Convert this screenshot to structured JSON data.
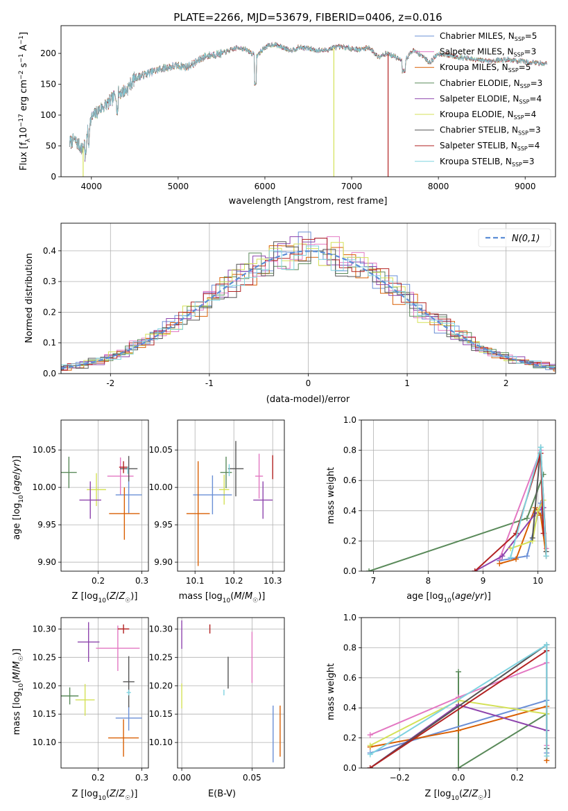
{
  "chart_data": [
    {
      "id": "spectrum",
      "type": "line",
      "title": "PLATE=2266, MJD=53679, FIBERID=0406, z=0.016",
      "xlabel": "wavelength [Angstrom, rest frame]",
      "ylabel": "Flux [f_λ10^-17 erg cm^-2 s^-1 A^-1]",
      "xlim": [
        3650,
        9350
      ],
      "ylim": [
        0,
        245
      ],
      "xticks": [
        4000,
        5000,
        6000,
        7000,
        8000,
        9000
      ],
      "yticks": [
        0,
        50,
        100,
        150,
        200
      ],
      "legend_placement": "right",
      "spectrum_profile_x": [
        3750,
        3800,
        3900,
        3950,
        4000,
        4100,
        4200,
        4300,
        4400,
        4500,
        4600,
        4700,
        4800,
        4900,
        5000,
        5100,
        5200,
        5300,
        5400,
        5500,
        5600,
        5700,
        5800,
        5900,
        6000,
        6100,
        6200,
        6300,
        6400,
        6500,
        6600,
        6700,
        6800,
        6900,
        7000,
        7100,
        7200,
        7300,
        7400,
        7500,
        7600,
        7700,
        7800,
        7900,
        8000,
        8200,
        8400,
        8600,
        8800,
        9000,
        9200
      ],
      "spectrum_profile_y": [
        55,
        60,
        45,
        70,
        95,
        110,
        120,
        135,
        140,
        160,
        165,
        170,
        175,
        178,
        180,
        178,
        185,
        195,
        198,
        200,
        205,
        210,
        205,
        195,
        210,
        215,
        210,
        205,
        210,
        208,
        205,
        205,
        210,
        210,
        208,
        206,
        210,
        195,
        200,
        195,
        185,
        205,
        198,
        185,
        200,
        195,
        190,
        188,
        190,
        186,
        184
      ],
      "series": [
        {
          "name": "Chabrier MILES, N_SSP=5",
          "label_main": "Chabrier MILES, N",
          "label_sub": "SSP",
          "label_tail": "=5",
          "color": "#6a8fd6"
        },
        {
          "name": "Salpeter MILES, N_SSP=3",
          "label_main": "Salpeter MILES, N",
          "label_sub": "SSP",
          "label_tail": "=3",
          "color": "#e377c2"
        },
        {
          "name": "Kroupa MILES, N_SSP=5",
          "label_main": "Kroupa MILES, N",
          "label_sub": "SSP",
          "label_tail": "=5",
          "color": "#d95f02"
        },
        {
          "name": "Chabrier ELODIE, N_SSP=3",
          "label_main": "Chabrier ELODIE, N",
          "label_sub": "SSP",
          "label_tail": "=3",
          "color": "#5a8a5a"
        },
        {
          "name": "Salpeter ELODIE, N_SSP=4",
          "label_main": "Salpeter ELODIE, N",
          "label_sub": "SSP",
          "label_tail": "=4",
          "color": "#8e44ad"
        },
        {
          "name": "Kroupa ELODIE, N_SSP=4",
          "label_main": "Kroupa ELODIE, N",
          "label_sub": "SSP",
          "label_tail": "=4",
          "color": "#d4e157"
        },
        {
          "name": "Chabrier STELIB, N_SSP=3",
          "label_main": "Chabrier STELIB, N",
          "label_sub": "SSP",
          "label_tail": "=3",
          "color": "#555555"
        },
        {
          "name": "Salpeter STELIB, N_SSP=4",
          "label_main": "Salpeter STELIB, N",
          "label_sub": "SSP",
          "label_tail": "=4",
          "color": "#b22222"
        },
        {
          "name": "Kroupa STELIB, N_SSP=3",
          "label_main": "Kroupa STELIB, N",
          "label_sub": "SSP",
          "label_tail": "=3",
          "color": "#7fd3e0"
        }
      ],
      "drops": [
        {
          "x": 3905,
          "color": "#d4e157"
        },
        {
          "x": 6795,
          "color": "#d4e157"
        },
        {
          "x": 7420,
          "color": "#b22222"
        }
      ]
    },
    {
      "id": "residuals",
      "type": "histogram",
      "xlabel": "(data-model)/error",
      "ylabel": "Normed distribution",
      "xlim": [
        -2.5,
        2.5
      ],
      "ylim": [
        0,
        0.49
      ],
      "xticks": [
        -2,
        -1,
        0,
        1,
        2
      ],
      "yticks": [
        0.0,
        0.1,
        0.2,
        0.3,
        0.4
      ],
      "grid": true,
      "legend_placement": "top-right",
      "gaussian_label": "N(0,1)",
      "gaussian_color": "#5b8dd6"
    },
    {
      "id": "age-vs-Z",
      "type": "errorbar",
      "xlabel": "Z [log10(Z/Z☉)]",
      "ylabel": "age [log10(age/yr)]",
      "xlim": [
        0.115,
        0.315
      ],
      "ylim": [
        9.888,
        10.09
      ],
      "xticks": [
        0.2,
        0.3
      ],
      "yticks": [
        9.9,
        9.95,
        10.0,
        10.05
      ],
      "grid": true,
      "points": [
        {
          "x": 0.133,
          "y": 10.02,
          "xerr": 0.018,
          "yerr": 0.021,
          "color": "#5a8a5a"
        },
        {
          "x": 0.196,
          "y": 9.997,
          "xerr": 0.022,
          "yerr": 0.022,
          "color": "#d4e157"
        },
        {
          "x": 0.182,
          "y": 9.983,
          "xerr": 0.025,
          "yerr": 0.025,
          "color": "#8e44ad"
        },
        {
          "x": 0.251,
          "y": 10.015,
          "xerr": 0.03,
          "yerr": 0.025,
          "color": "#e377c2"
        },
        {
          "x": 0.27,
          "y": 9.99,
          "xerr": 0.03,
          "yerr": 0.025,
          "color": "#6a8fd6"
        },
        {
          "x": 0.26,
          "y": 9.965,
          "xerr": 0.035,
          "yerr": 0.035,
          "color": "#d95f02"
        },
        {
          "x": 0.27,
          "y": 10.025,
          "xerr": 0.02,
          "yerr": 0.017,
          "color": "#555555"
        },
        {
          "x": 0.258,
          "y": 10.027,
          "xerr": 0.01,
          "yerr": 0.008,
          "color": "#b22222"
        },
        {
          "x": 0.268,
          "y": 10.023,
          "xerr": 0.0,
          "yerr": 0.005,
          "color": "#7fd3e0"
        }
      ]
    },
    {
      "id": "age-vs-mass",
      "type": "errorbar",
      "xlabel": "mass [log10(M/M☉)]",
      "ylabel": "",
      "xlim": [
        10.055,
        10.33
      ],
      "ylim": [
        9.888,
        10.09
      ],
      "xticks": [
        10.1,
        10.2,
        10.3
      ],
      "yticks": [
        9.9,
        9.95,
        10.0,
        10.05
      ],
      "grid": true,
      "points": [
        {
          "x": 10.18,
          "y": 10.02,
          "xerr": 0.015,
          "yerr": 0.021,
          "color": "#5a8a5a"
        },
        {
          "x": 10.175,
          "y": 9.997,
          "xerr": 0.013,
          "yerr": 0.02,
          "color": "#d4e157"
        },
        {
          "x": 10.275,
          "y": 9.983,
          "xerr": 0.025,
          "yerr": 0.025,
          "color": "#8e44ad"
        },
        {
          "x": 10.265,
          "y": 10.015,
          "xerr": 0.01,
          "yerr": 0.03,
          "color": "#e377c2"
        },
        {
          "x": 10.145,
          "y": 9.99,
          "xerr": 0.05,
          "yerr": 0.026,
          "color": "#6a8fd6"
        },
        {
          "x": 10.108,
          "y": 9.965,
          "xerr": 0.03,
          "yerr": 0.07,
          "color": "#d95f02"
        },
        {
          "x": 10.205,
          "y": 10.025,
          "xerr": 0.02,
          "yerr": 0.037,
          "color": "#555555"
        },
        {
          "x": 10.3,
          "y": 10.027,
          "xerr": 0.0,
          "yerr": 0.016,
          "color": "#b22222"
        },
        {
          "x": 10.188,
          "y": 10.023,
          "xerr": 0.0,
          "yerr": 0.008,
          "color": "#7fd3e0"
        }
      ]
    },
    {
      "id": "mass-weight-vs-age",
      "type": "line",
      "xlabel": "age [log10(age/yr)]",
      "ylabel": "mass weight",
      "xlim": [
        6.78,
        10.32
      ],
      "ylim": [
        0,
        1.0
      ],
      "xticks": [
        7,
        8,
        9,
        10
      ],
      "yticks": [
        0.0,
        0.2,
        0.4,
        0.6,
        0.8,
        1.0
      ],
      "grid": true,
      "series": [
        {
          "color": "#5a8a5a",
          "x": [
            6.92,
            9.8,
            10.1
          ],
          "y": [
            0.0,
            0.35,
            0.64
          ]
        },
        {
          "color": "#6a8fd6",
          "x": [
            9.3,
            9.8,
            10.05,
            10.15
          ],
          "y": [
            0.07,
            0.1,
            0.45,
            0.1
          ]
        },
        {
          "color": "#e377c2",
          "x": [
            9.3,
            10.05,
            10.15
          ],
          "y": [
            0.08,
            0.8,
            0.15
          ]
        },
        {
          "color": "#d95f02",
          "x": [
            9.3,
            9.6,
            9.95,
            10.05,
            10.15
          ],
          "y": [
            0.05,
            0.08,
            0.42,
            0.37,
            0.1
          ]
        },
        {
          "color": "#8e44ad",
          "x": [
            8.85,
            9.35,
            9.95,
            10.1
          ],
          "y": [
            0.0,
            0.1,
            0.38,
            0.42
          ]
        },
        {
          "color": "#d4e157",
          "x": [
            9.5,
            9.9,
            10.0,
            10.1
          ],
          "y": [
            0.15,
            0.2,
            0.4,
            0.47
          ]
        },
        {
          "color": "#555555",
          "x": [
            9.9,
            10.05,
            10.15
          ],
          "y": [
            0.22,
            0.82,
            0.13
          ]
        },
        {
          "color": "#b22222",
          "x": [
            8.85,
            9.6,
            10.05,
            10.1
          ],
          "y": [
            0.0,
            0.25,
            0.78,
            0.25
          ]
        },
        {
          "color": "#7fd3e0",
          "x": [
            9.5,
            10.05,
            10.15
          ],
          "y": [
            0.09,
            0.82,
            0.1
          ]
        }
      ]
    },
    {
      "id": "mass-vs-Z",
      "type": "errorbar",
      "xlabel": "Z [log10(Z/Z☉)]",
      "ylabel": "mass [log10(M/M☉)]",
      "xlim": [
        0.115,
        0.315
      ],
      "ylim": [
        10.055,
        10.32
      ],
      "xticks": [
        0.2,
        0.3
      ],
      "yticks": [
        10.1,
        10.15,
        10.2,
        10.25,
        10.3
      ],
      "grid": true,
      "points": [
        {
          "x": 0.135,
          "y": 10.182,
          "xerr": 0.02,
          "yerr": 0.015,
          "color": "#5a8a5a"
        },
        {
          "x": 0.17,
          "y": 10.175,
          "xerr": 0.022,
          "yerr": 0.028,
          "color": "#d4e157"
        },
        {
          "x": 0.178,
          "y": 10.277,
          "xerr": 0.025,
          "yerr": 0.035,
          "color": "#8e44ad"
        },
        {
          "x": 0.245,
          "y": 10.266,
          "xerr": 0.05,
          "yerr": 0.04,
          "color": "#e377c2"
        },
        {
          "x": 0.27,
          "y": 10.143,
          "xerr": 0.03,
          "yerr": 0.022,
          "color": "#6a8fd6"
        },
        {
          "x": 0.258,
          "y": 10.108,
          "xerr": 0.035,
          "yerr": 0.033,
          "color": "#d95f02"
        },
        {
          "x": 0.27,
          "y": 10.207,
          "xerr": 0.013,
          "yerr": 0.045,
          "color": "#555555"
        },
        {
          "x": 0.258,
          "y": 10.3,
          "xerr": 0.013,
          "yerr": 0.008,
          "color": "#b22222"
        },
        {
          "x": 0.27,
          "y": 10.188,
          "xerr": 0.005,
          "yerr": 0.005,
          "color": "#7fd3e0"
        }
      ]
    },
    {
      "id": "mass-vs-EBV",
      "type": "errorbar",
      "xlabel": "E(B-V)",
      "ylabel": "",
      "xlim": [
        -0.003,
        0.073
      ],
      "ylim": [
        10.055,
        10.32
      ],
      "xticks": [
        0.0,
        0.05
      ],
      "xtick_labels": [
        "0.00",
        "0.05"
      ],
      "yticks": [
        10.1,
        10.15,
        10.2,
        10.25,
        10.3
      ],
      "grid": true,
      "points": [
        {
          "x": 0.0,
          "y": 10.182,
          "xerr": 0,
          "yerr": 0.022,
          "color": "#d4e157"
        },
        {
          "x": 0.0,
          "y": 10.29,
          "xerr": 0,
          "yerr": 0.025,
          "color": "#8e44ad"
        },
        {
          "x": 0.02,
          "y": 10.3,
          "xerr": 0,
          "yerr": 0.008,
          "color": "#b22222"
        },
        {
          "x": 0.033,
          "y": 10.223,
          "xerr": 0,
          "yerr": 0.028,
          "color": "#555555"
        },
        {
          "x": 0.03,
          "y": 10.188,
          "xerr": 0,
          "yerr": 0.005,
          "color": "#7fd3e0"
        },
        {
          "x": 0.05,
          "y": 10.25,
          "xerr": 0,
          "yerr": 0.045,
          "color": "#e377c2"
        },
        {
          "x": 0.065,
          "y": 10.115,
          "xerr": 0,
          "yerr": 0.05,
          "color": "#6a8fd6"
        },
        {
          "x": 0.07,
          "y": 10.12,
          "xerr": 0,
          "yerr": 0.045,
          "color": "#d95f02"
        }
      ]
    },
    {
      "id": "mass-weight-vs-Z",
      "type": "line",
      "xlabel": "Z [log10(Z/Z☉)]",
      "ylabel": "mass weight",
      "xlim": [
        -0.33,
        0.33
      ],
      "ylim": [
        0,
        1.0
      ],
      "xticks": [
        -0.2,
        0.0,
        0.2
      ],
      "xtick_labels": [
        "−0.2",
        "0.0",
        "0.2"
      ],
      "yticks": [
        0.0,
        0.2,
        0.4,
        0.6,
        0.8,
        1.0
      ],
      "grid": true,
      "series": [
        {
          "color": "#5a8a5a",
          "x": [
            0.0,
            0.0,
            0.3
          ],
          "y": [
            0.64,
            0.0,
            0.36
          ]
        },
        {
          "color": "#6a8fd6",
          "x": [
            -0.3,
            0.3,
            0.3
          ],
          "y": [
            0.1,
            0.45,
            0.1
          ]
        },
        {
          "color": "#e377c2",
          "x": [
            -0.3,
            0.0,
            0.3,
            0.3
          ],
          "y": [
            0.22,
            0.47,
            0.7,
            0.15
          ]
        },
        {
          "color": "#d95f02",
          "x": [
            -0.3,
            0.0,
            0.3,
            0.3
          ],
          "y": [
            0.14,
            0.25,
            0.41,
            0.05
          ]
        },
        {
          "color": "#8e44ad",
          "x": [
            -0.3,
            0.0,
            0.3
          ],
          "y": [
            0.0,
            0.42,
            0.25
          ]
        },
        {
          "color": "#d4e157",
          "x": [
            -0.3,
            0.0,
            0.3
          ],
          "y": [
            0.15,
            0.45,
            0.36
          ]
        },
        {
          "color": "#555555",
          "x": [
            -0.3,
            0.3,
            0.3
          ],
          "y": [
            0.0,
            0.82,
            0.13
          ]
        },
        {
          "color": "#b22222",
          "x": [
            -0.3,
            0.3
          ],
          "y": [
            0.0,
            0.78
          ]
        },
        {
          "color": "#7fd3e0",
          "x": [
            -0.3,
            0.3,
            0.3
          ],
          "y": [
            0.09,
            0.82,
            0.08
          ]
        }
      ]
    }
  ]
}
